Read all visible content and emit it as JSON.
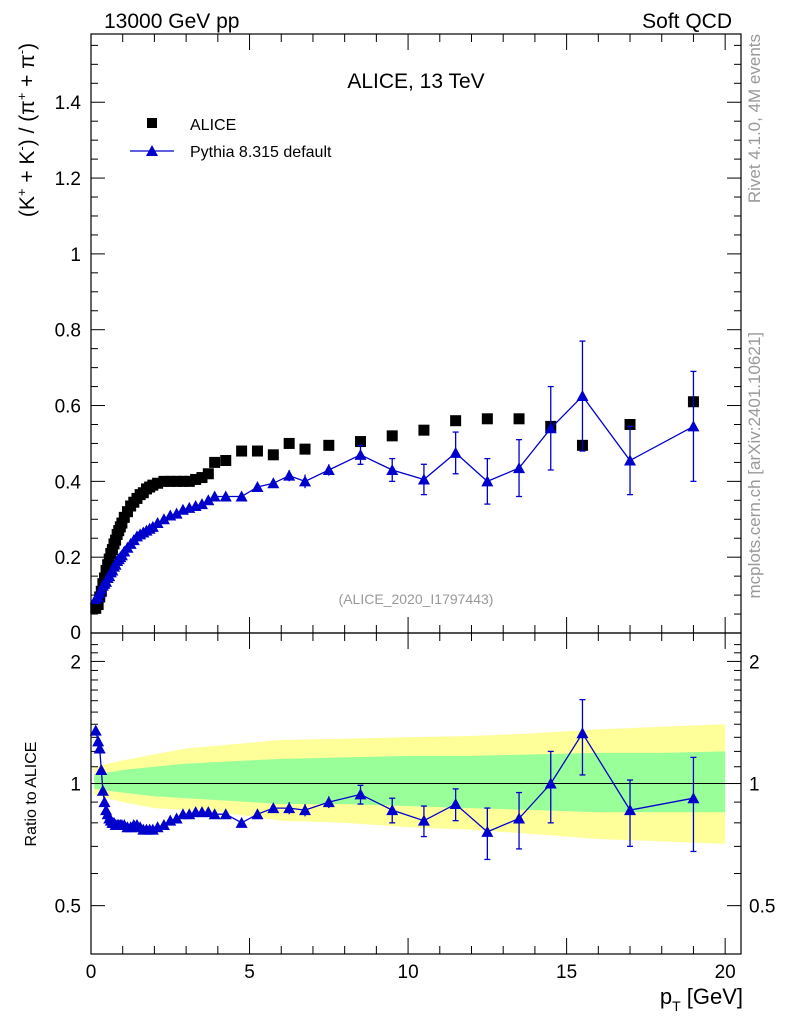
{
  "header": {
    "left": "13000 GeV pp",
    "right": "Soft QCD"
  },
  "side": {
    "rivet": "Rivet 4.1.0,  4M events",
    "mcplots": "mcplots.cern.ch [arXiv:2401.10621]"
  },
  "chart_data": [
    {
      "type": "scatter",
      "title": "ALICE, 13 TeV",
      "ylabel": "(K⁺ + K⁻) / (π⁺ + π⁻)",
      "xlabel": "p_T [GeV]",
      "xlim": [
        0,
        20.5
      ],
      "ylim": [
        0,
        1.58
      ],
      "yticks": [
        0.2,
        0.4,
        0.6,
        0.8,
        1.0,
        1.2,
        1.4
      ],
      "ytick_labels": [
        "0.2",
        "0.4",
        "0.6",
        "0.8",
        "1",
        "1.2",
        "1.4"
      ],
      "y_zero_label": "0",
      "watermark": "(ALICE_2020_I1797443)",
      "legend": {
        "position": "top-left",
        "data_label": "ALICE",
        "mc_label": "Pythia 8.315 default"
      },
      "series": [
        {
          "name": "ALICE",
          "marker": "square",
          "color": "#000000",
          "x": [
            0.15,
            0.225,
            0.275,
            0.325,
            0.375,
            0.425,
            0.475,
            0.525,
            0.575,
            0.625,
            0.675,
            0.725,
            0.775,
            0.825,
            0.875,
            0.925,
            0.975,
            1.05,
            1.15,
            1.25,
            1.35,
            1.45,
            1.55,
            1.65,
            1.75,
            1.85,
            1.95,
            2.1,
            2.3,
            2.5,
            2.7,
            2.9,
            3.1,
            3.3,
            3.5,
            3.7,
            3.9,
            4.25,
            4.75,
            5.25,
            5.75,
            6.25,
            6.75,
            7.5,
            8.5,
            9.5,
            10.5,
            11.5,
            12.5,
            13.5,
            14.5,
            15.5,
            17.0,
            19.0
          ],
          "y": [
            0.065,
            0.075,
            0.095,
            0.11,
            0.13,
            0.145,
            0.165,
            0.18,
            0.195,
            0.21,
            0.22,
            0.235,
            0.245,
            0.26,
            0.27,
            0.28,
            0.29,
            0.305,
            0.32,
            0.335,
            0.345,
            0.355,
            0.365,
            0.37,
            0.38,
            0.385,
            0.39,
            0.395,
            0.4,
            0.4,
            0.4,
            0.4,
            0.4,
            0.405,
            0.41,
            0.42,
            0.45,
            0.455,
            0.48,
            0.48,
            0.47,
            0.5,
            0.485,
            0.495,
            0.505,
            0.52,
            0.535,
            0.56,
            0.565,
            0.565,
            0.545,
            0.495,
            0.55,
            0.61
          ]
        },
        {
          "name": "Pythia 8.315 default",
          "marker": "triangle",
          "color": "#0000cc",
          "x": [
            0.15,
            0.225,
            0.275,
            0.325,
            0.375,
            0.425,
            0.475,
            0.525,
            0.575,
            0.625,
            0.675,
            0.725,
            0.775,
            0.825,
            0.875,
            0.925,
            0.975,
            1.05,
            1.15,
            1.25,
            1.35,
            1.45,
            1.55,
            1.65,
            1.75,
            1.85,
            1.95,
            2.1,
            2.3,
            2.5,
            2.7,
            2.9,
            3.1,
            3.3,
            3.5,
            3.7,
            3.9,
            4.25,
            4.75,
            5.25,
            5.75,
            6.25,
            6.75,
            7.5,
            8.5,
            9.5,
            10.5,
            11.5,
            12.5,
            13.5,
            14.5,
            15.5,
            17.0,
            19.0
          ],
          "y": [
            0.09,
            0.095,
            0.105,
            0.115,
            0.125,
            0.13,
            0.135,
            0.145,
            0.15,
            0.16,
            0.165,
            0.175,
            0.18,
            0.19,
            0.195,
            0.2,
            0.205,
            0.215,
            0.225,
            0.235,
            0.245,
            0.255,
            0.26,
            0.265,
            0.27,
            0.275,
            0.28,
            0.29,
            0.3,
            0.31,
            0.315,
            0.325,
            0.33,
            0.335,
            0.34,
            0.35,
            0.36,
            0.36,
            0.36,
            0.385,
            0.395,
            0.415,
            0.4,
            0.43,
            0.47,
            0.43,
            0.405,
            0.475,
            0.4,
            0.435,
            0.54,
            0.625,
            0.455,
            0.545
          ],
          "err": [
            0.002,
            0.002,
            0.002,
            0.002,
            0.002,
            0.002,
            0.002,
            0.002,
            0.002,
            0.002,
            0.002,
            0.002,
            0.002,
            0.002,
            0.002,
            0.002,
            0.002,
            0.002,
            0.002,
            0.002,
            0.002,
            0.002,
            0.002,
            0.002,
            0.002,
            0.002,
            0.002,
            0.003,
            0.003,
            0.003,
            0.003,
            0.003,
            0.004,
            0.004,
            0.004,
            0.005,
            0.006,
            0.006,
            0.008,
            0.01,
            0.012,
            0.015,
            0.018,
            0.015,
            0.025,
            0.03,
            0.04,
            0.055,
            0.06,
            0.075,
            0.11,
            0.145,
            0.09,
            0.145
          ]
        }
      ]
    },
    {
      "type": "line",
      "ylabel": "Ratio to ALICE",
      "xlabel": "p_T [GeV]",
      "xlim": [
        0,
        20.5
      ],
      "ylim": [
        0.38,
        2.35
      ],
      "yticks": [
        0.5,
        1,
        2
      ],
      "ytick_labels": [
        "0.5",
        "1",
        "2"
      ],
      "xticks": [
        0,
        5,
        10,
        15,
        20
      ],
      "xtick_labels": [
        "0",
        "5",
        "10",
        "15",
        "20"
      ],
      "reference_line": 1,
      "band_x": [
        0.1,
        1,
        2,
        3,
        4,
        5,
        6,
        8,
        10,
        12,
        14,
        16,
        18,
        20
      ],
      "yellow_band_low": [
        0.94,
        0.9,
        0.87,
        0.86,
        0.85,
        0.83,
        0.81,
        0.8,
        0.78,
        0.77,
        0.75,
        0.73,
        0.72,
        0.71
      ],
      "yellow_band_high": [
        1.1,
        1.14,
        1.18,
        1.22,
        1.24,
        1.26,
        1.28,
        1.29,
        1.3,
        1.31,
        1.33,
        1.36,
        1.38,
        1.4
      ],
      "green_band_low": [
        0.97,
        0.95,
        0.93,
        0.92,
        0.91,
        0.9,
        0.89,
        0.89,
        0.88,
        0.87,
        0.86,
        0.85,
        0.85,
        0.85
      ],
      "green_band_high": [
        1.05,
        1.08,
        1.1,
        1.12,
        1.13,
        1.14,
        1.15,
        1.16,
        1.17,
        1.17,
        1.18,
        1.19,
        1.19,
        1.2
      ],
      "green_band_color": "#99ff99",
      "yellow_band_color": "#ffff99",
      "series": [
        {
          "name": "Pythia 8.315 default / ALICE",
          "marker": "triangle",
          "color": "#0000cc",
          "x": [
            0.15,
            0.225,
            0.275,
            0.325,
            0.375,
            0.425,
            0.475,
            0.525,
            0.575,
            0.625,
            0.675,
            0.725,
            0.775,
            0.825,
            0.875,
            0.925,
            0.975,
            1.05,
            1.15,
            1.25,
            1.35,
            1.45,
            1.55,
            1.65,
            1.75,
            1.85,
            1.95,
            2.1,
            2.3,
            2.5,
            2.7,
            2.9,
            3.1,
            3.3,
            3.5,
            3.7,
            3.9,
            4.25,
            4.75,
            5.25,
            5.75,
            6.25,
            6.75,
            7.5,
            8.5,
            9.5,
            10.5,
            11.5,
            12.5,
            13.5,
            14.5,
            15.5,
            17.0,
            19.0
          ],
          "y": [
            1.35,
            1.27,
            1.22,
            1.08,
            0.96,
            0.9,
            0.86,
            0.84,
            0.82,
            0.81,
            0.8,
            0.8,
            0.79,
            0.79,
            0.79,
            0.79,
            0.79,
            0.79,
            0.78,
            0.78,
            0.79,
            0.79,
            0.78,
            0.77,
            0.77,
            0.77,
            0.77,
            0.78,
            0.79,
            0.81,
            0.82,
            0.84,
            0.84,
            0.85,
            0.85,
            0.85,
            0.84,
            0.84,
            0.8,
            0.84,
            0.87,
            0.87,
            0.86,
            0.9,
            0.94,
            0.86,
            0.81,
            0.89,
            0.76,
            0.82,
            1.0,
            1.33,
            0.86,
            0.92
          ],
          "err": [
            0.02,
            0.02,
            0.02,
            0.02,
            0.01,
            0.01,
            0.01,
            0.01,
            0.01,
            0.01,
            0.01,
            0.01,
            0.01,
            0.01,
            0.01,
            0.01,
            0.01,
            0.01,
            0.01,
            0.01,
            0.01,
            0.01,
            0.01,
            0.01,
            0.01,
            0.01,
            0.01,
            0.01,
            0.01,
            0.01,
            0.01,
            0.01,
            0.01,
            0.01,
            0.01,
            0.01,
            0.01,
            0.01,
            0.02,
            0.02,
            0.02,
            0.03,
            0.03,
            0.03,
            0.05,
            0.06,
            0.07,
            0.08,
            0.11,
            0.13,
            0.2,
            0.28,
            0.16,
            0.24
          ]
        }
      ]
    }
  ]
}
